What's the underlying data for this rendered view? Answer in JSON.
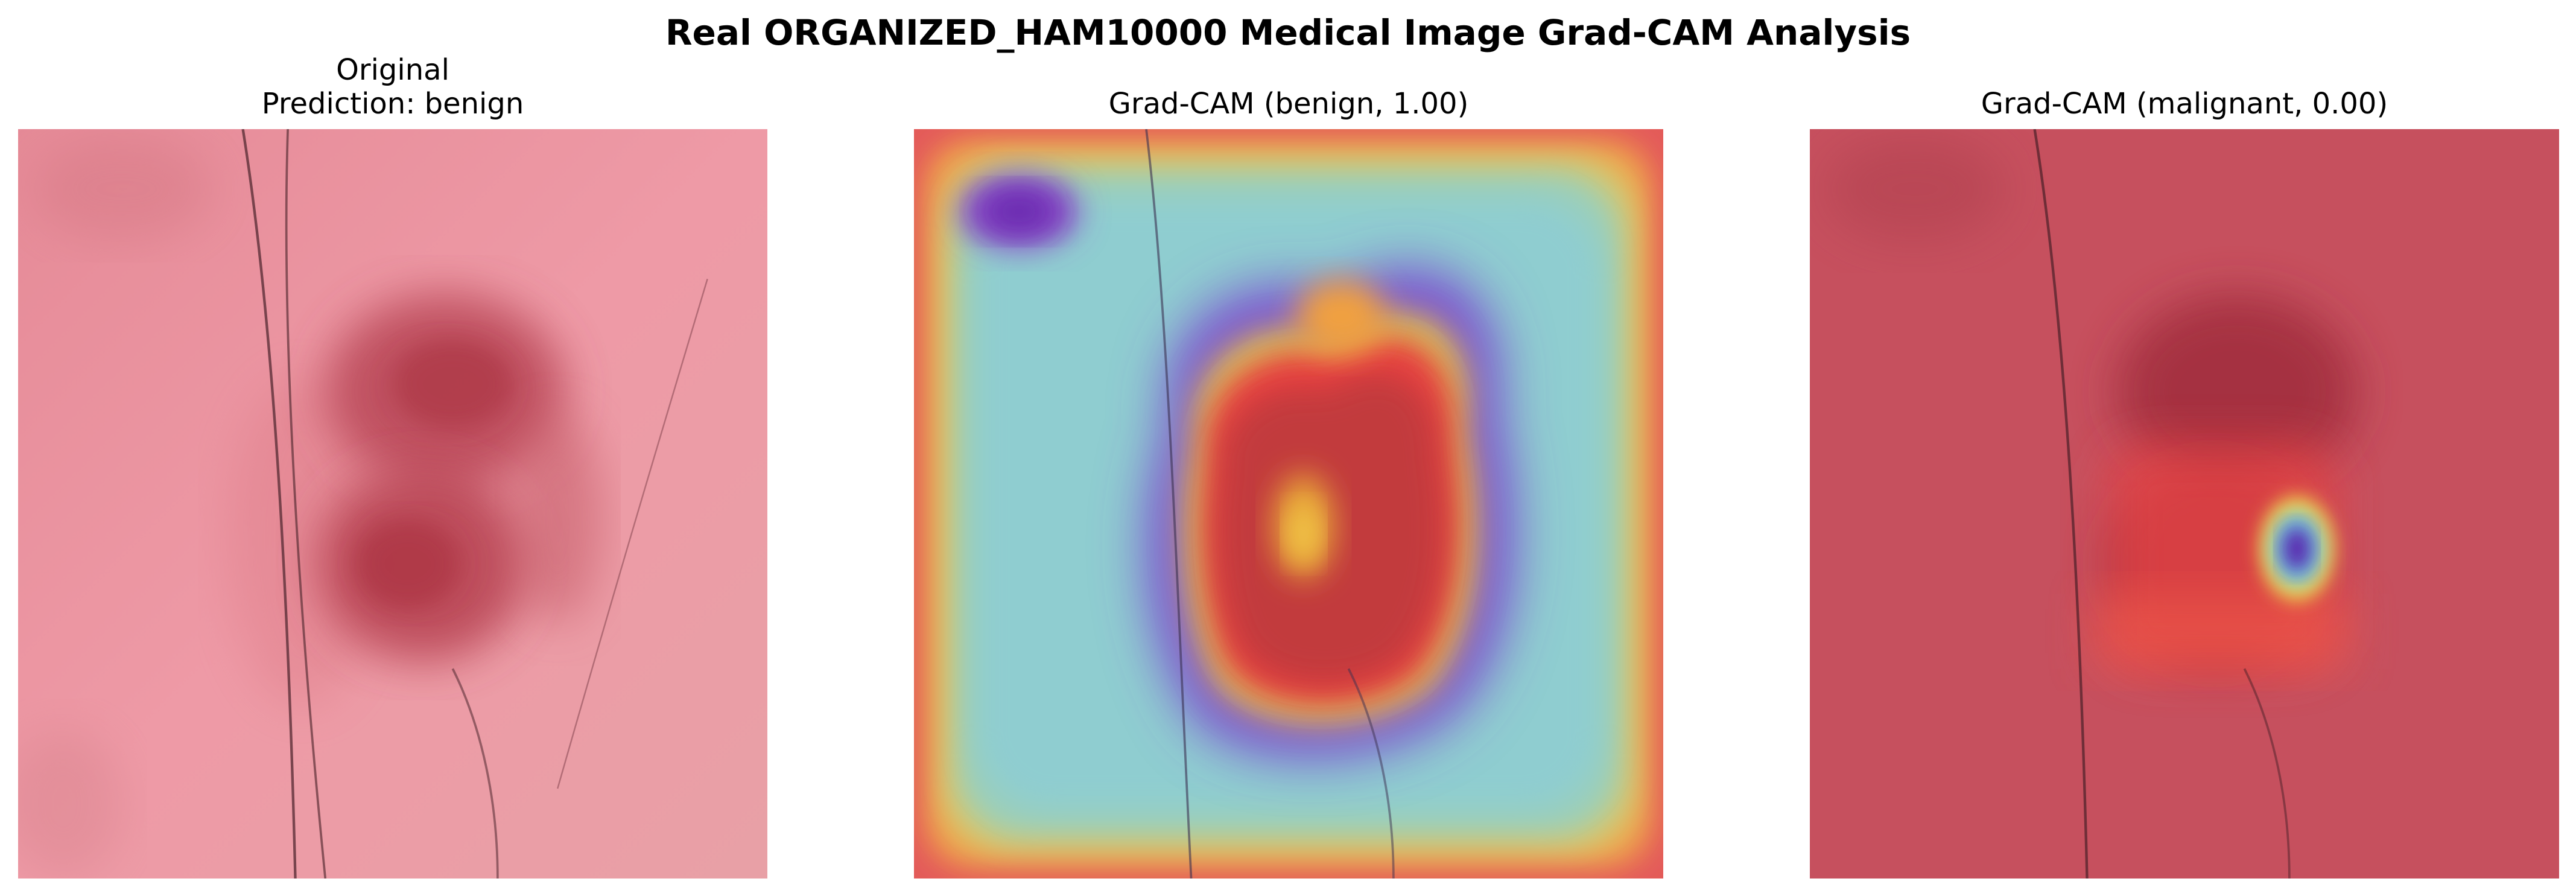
{
  "figure": {
    "title": "Real ORGANIZED_HAM10000 Medical Image Grad-CAM Analysis"
  },
  "panels": [
    {
      "title_line1": "Original",
      "title_line2": "Prediction: benign"
    },
    {
      "title_line1": "",
      "title_line2": "Grad-CAM (benign, 1.00)"
    },
    {
      "title_line1": "",
      "title_line2": "Grad-CAM (malignant, 0.00)"
    }
  ],
  "colors": {
    "skin": "#e08a95",
    "lesion": "#b8364a",
    "overlay_tint": "#c44a55"
  }
}
